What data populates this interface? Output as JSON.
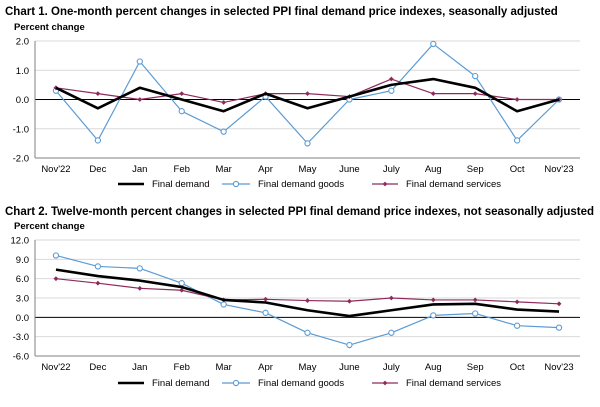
{
  "chart_data": [
    {
      "type": "line",
      "title": "Chart 1. One-month percent changes in selected PPI final demand price indexes, seasonally adjusted",
      "ylabel": "Percent change",
      "ylim": [
        -2.0,
        2.0
      ],
      "yticks": [
        "2.0",
        "1.0",
        "0.0",
        "-1.0",
        "-2.0"
      ],
      "ytick_values": [
        2.0,
        1.0,
        0.0,
        -1.0,
        -2.0
      ],
      "categories": [
        "Nov'22",
        "Dec",
        "Jan",
        "Feb",
        "Mar",
        "Apr",
        "May",
        "June",
        "July",
        "Aug",
        "Sep",
        "Oct",
        "Nov'23"
      ],
      "grid": true,
      "legend_position": "bottom",
      "series": [
        {
          "name": "Final demand",
          "color": "#000000",
          "style": "thick",
          "values": [
            0.4,
            -0.3,
            0.4,
            0.0,
            -0.4,
            0.2,
            -0.3,
            0.1,
            0.5,
            0.7,
            0.4,
            -0.4,
            0.0
          ]
        },
        {
          "name": "Final demand goods",
          "color": "#5b9bd5",
          "style": "circle",
          "values": [
            0.3,
            -1.4,
            1.3,
            -0.4,
            -1.1,
            0.1,
            -1.5,
            0.0,
            0.3,
            1.9,
            0.8,
            -1.4,
            0.0
          ]
        },
        {
          "name": "Final demand services",
          "color": "#8e2a5c",
          "style": "diamond",
          "values": [
            0.4,
            0.2,
            0.0,
            0.2,
            -0.1,
            0.2,
            0.2,
            0.1,
            0.7,
            0.2,
            0.2,
            0.0,
            0.0
          ]
        }
      ]
    },
    {
      "type": "line",
      "title": "Chart 2. Twelve-month percent changes in selected PPI final demand price indexes, not seasonally adjusted",
      "ylabel": "Percent change",
      "ylim": [
        -6.0,
        12.0
      ],
      "yticks": [
        "12.0",
        "9.0",
        "6.0",
        "3.0",
        "0.0",
        "-3.0",
        "-6.0"
      ],
      "ytick_values": [
        12.0,
        9.0,
        6.0,
        3.0,
        0.0,
        -3.0,
        -6.0
      ],
      "categories": [
        "Nov'22",
        "Dec",
        "Jan",
        "Feb",
        "Mar",
        "Apr",
        "May",
        "June",
        "July",
        "Aug",
        "Sep",
        "Oct",
        "Nov'23"
      ],
      "grid": true,
      "legend_position": "bottom",
      "series": [
        {
          "name": "Final demand",
          "color": "#000000",
          "style": "thick",
          "values": [
            7.4,
            6.4,
            5.7,
            4.7,
            2.7,
            2.3,
            1.1,
            0.2,
            1.1,
            2.0,
            2.1,
            1.2,
            0.9
          ]
        },
        {
          "name": "Final demand goods",
          "color": "#5b9bd5",
          "style": "circle",
          "values": [
            9.6,
            7.9,
            7.6,
            5.3,
            2.0,
            0.7,
            -2.4,
            -4.3,
            -2.4,
            0.3,
            0.6,
            -1.3,
            -1.6
          ]
        },
        {
          "name": "Final demand services",
          "color": "#8e2a5c",
          "style": "diamond",
          "values": [
            6.0,
            5.3,
            4.5,
            4.2,
            2.7,
            2.8,
            2.6,
            2.5,
            3.0,
            2.7,
            2.7,
            2.4,
            2.1
          ]
        }
      ]
    }
  ]
}
